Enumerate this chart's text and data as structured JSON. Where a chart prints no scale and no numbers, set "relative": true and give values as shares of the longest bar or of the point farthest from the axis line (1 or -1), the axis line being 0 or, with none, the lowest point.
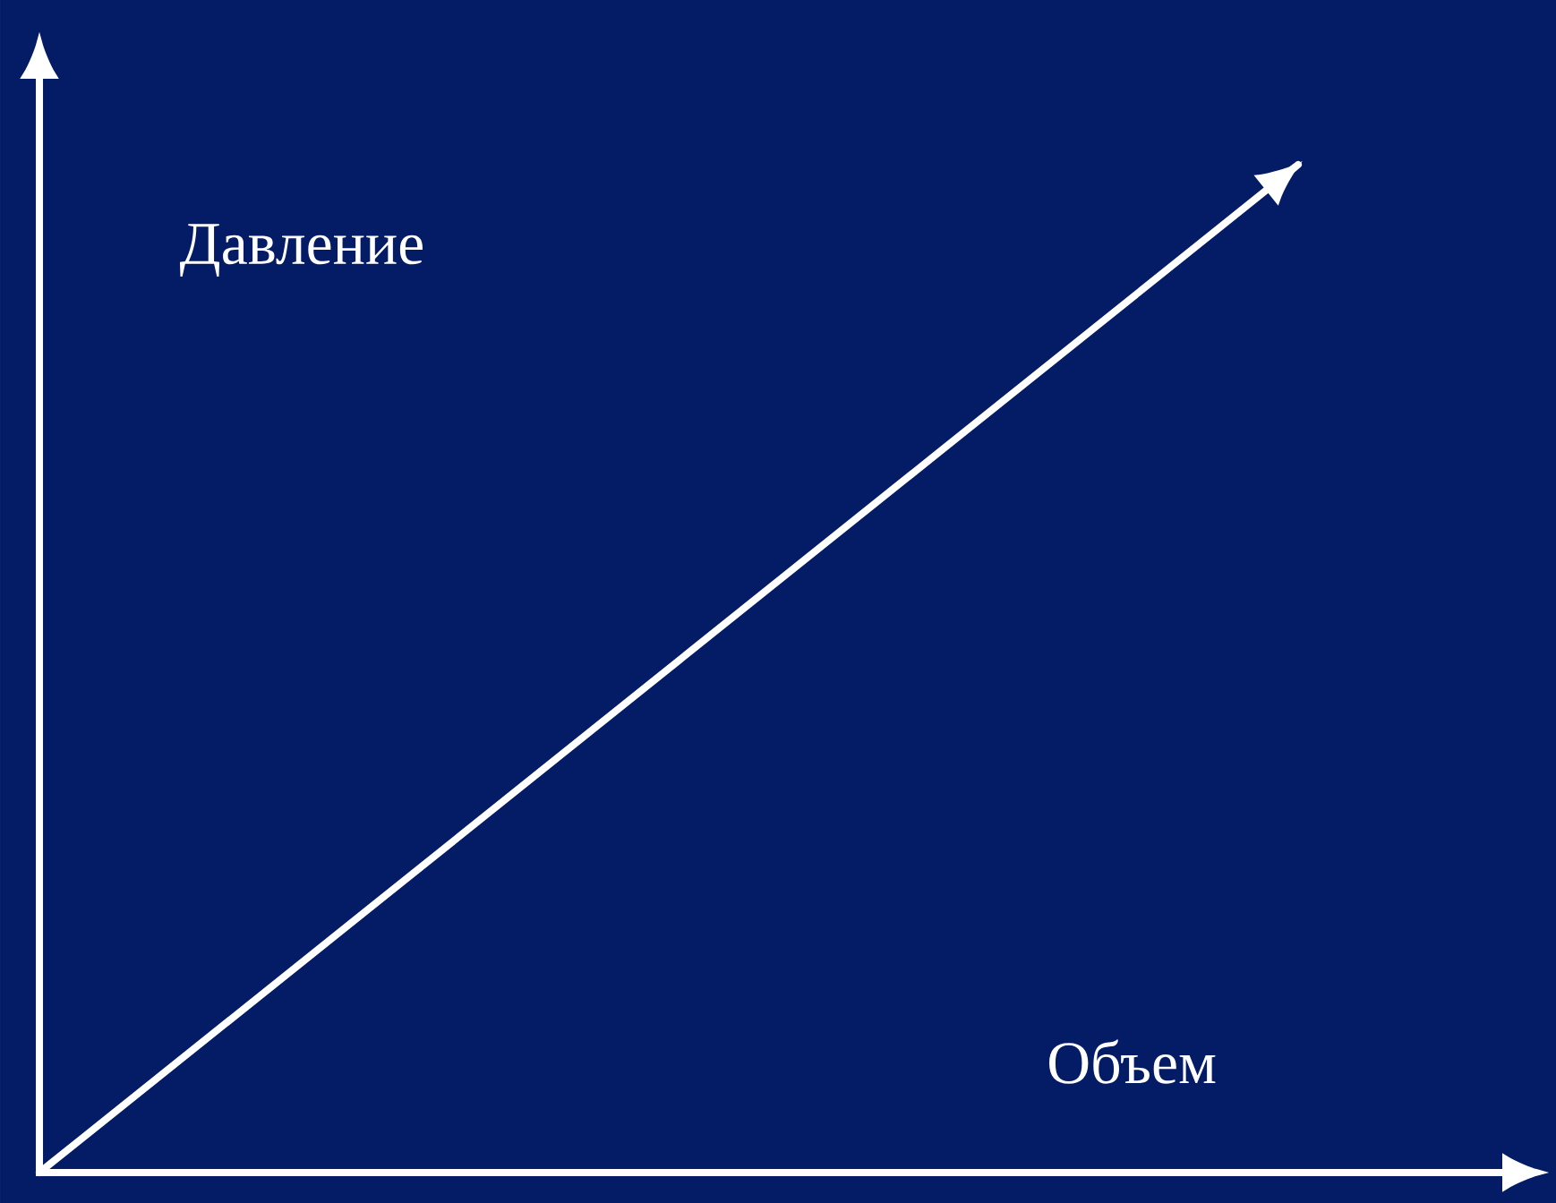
{
  "chart_data": {
    "type": "line",
    "relative": true,
    "annotations": [
      "Давление",
      "Объем"
    ],
    "categories": [
      null,
      null
    ],
    "series": [
      {
        "color": "#ffffff",
        "values": [
          0,
          1
        ]
      }
    ]
  }
}
